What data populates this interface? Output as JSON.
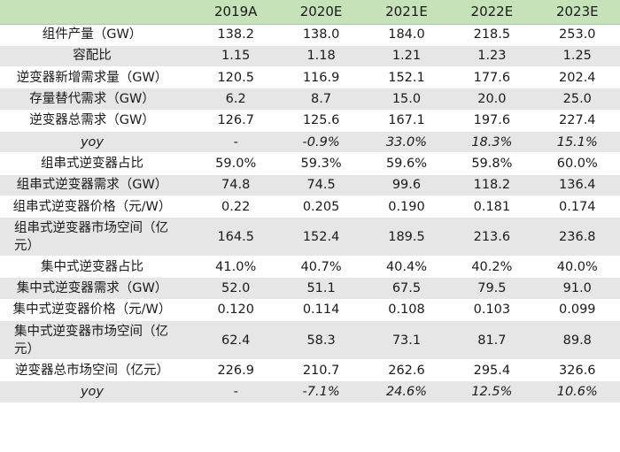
{
  "header": [
    "",
    "2019A",
    "2020E",
    "2021E",
    "2022E",
    "2023E"
  ],
  "rows": [
    {
      "label": "组件产量（GW）",
      "values": [
        "138.2",
        "138.0",
        "184.0",
        "218.5",
        "253.0"
      ],
      "italic": false,
      "shade": false
    },
    {
      "label": "容配比",
      "values": [
        "1.15",
        "1.18",
        "1.21",
        "1.23",
        "1.25"
      ],
      "italic": false,
      "shade": true
    },
    {
      "label": "逆变器新增需求量（GW）",
      "values": [
        "120.5",
        "116.9",
        "152.1",
        "177.6",
        "202.4"
      ],
      "italic": false,
      "shade": false
    },
    {
      "label": "存量替代需求（GW）",
      "values": [
        "6.2",
        "8.7",
        "15.0",
        "20.0",
        "25.0"
      ],
      "italic": false,
      "shade": true
    },
    {
      "label": "逆变器总需求（GW）",
      "values": [
        "126.7",
        "125.6",
        "167.1",
        "197.6",
        "227.4"
      ],
      "italic": false,
      "shade": false
    },
    {
      "label": "yoy",
      "values": [
        "-",
        "-0.9%",
        "33.0%",
        "18.3%",
        "15.1%"
      ],
      "italic": true,
      "shade": true
    },
    {
      "label": "组串式逆变器占比",
      "values": [
        "59.0%",
        "59.3%",
        "59.6%",
        "59.8%",
        "60.0%"
      ],
      "italic": false,
      "shade": false
    },
    {
      "label": "组串式逆变器需求（GW）",
      "values": [
        "74.8",
        "74.5",
        "99.6",
        "118.2",
        "136.4"
      ],
      "italic": false,
      "shade": true
    },
    {
      "label": "组串式逆变器价格（元/W）",
      "values": [
        "0.22",
        "0.205",
        "0.190",
        "0.181",
        "0.174"
      ],
      "italic": false,
      "shade": false
    },
    {
      "label": "组串式逆变器市场空间（亿元）",
      "values": [
        "164.5",
        "152.4",
        "189.5",
        "213.6",
        "236.8"
      ],
      "italic": false,
      "shade": true,
      "tall": true
    },
    {
      "label": "集中式逆变器占比",
      "values": [
        "41.0%",
        "40.7%",
        "40.4%",
        "40.2%",
        "40.0%"
      ],
      "italic": false,
      "shade": false
    },
    {
      "label": "集中式逆变器需求（GW）",
      "values": [
        "52.0",
        "51.1",
        "67.5",
        "79.5",
        "91.0"
      ],
      "italic": false,
      "shade": true
    },
    {
      "label": "集中式逆变器价格（元/W）",
      "values": [
        "0.120",
        "0.114",
        "0.108",
        "0.103",
        "0.099"
      ],
      "italic": false,
      "shade": false
    },
    {
      "label": "集中式逆变器市场空间（亿元）",
      "values": [
        "62.4",
        "58.3",
        "73.1",
        "81.7",
        "89.8"
      ],
      "italic": false,
      "shade": true,
      "tall": true
    },
    {
      "label": "逆变器总市场空间（亿元）",
      "values": [
        "226.9",
        "210.7",
        "262.6",
        "295.4",
        "326.6"
      ],
      "italic": false,
      "shade": false
    },
    {
      "label": "yoy",
      "values": [
        "-",
        "-7.1%",
        "24.6%",
        "12.5%",
        "10.6%"
      ],
      "italic": true,
      "shade": true
    }
  ]
}
